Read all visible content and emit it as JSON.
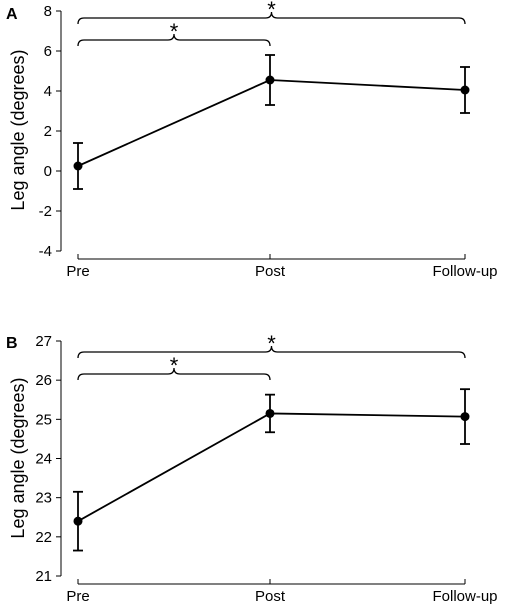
{
  "chart_data": [
    {
      "panel_label": "A",
      "type": "line",
      "categories": [
        "Pre",
        "Post",
        "Follow-up"
      ],
      "values": [
        0.25,
        4.55,
        4.05
      ],
      "error": [
        [
          -0.9,
          1.4
        ],
        [
          3.3,
          5.8
        ],
        [
          2.9,
          5.2
        ]
      ],
      "ylabel": "Leg angle (degrees)",
      "ylim": [
        -4,
        8
      ],
      "yticks": [
        -4,
        -2,
        0,
        2,
        4,
        6,
        8
      ],
      "ytick_labels": [
        "-4",
        "-2",
        "0",
        "2",
        "4",
        "6",
        "8"
      ],
      "significance": [
        {
          "from": "Pre",
          "to": "Post",
          "label": "*"
        },
        {
          "from": "Pre",
          "to": "Follow-up",
          "label": "*"
        }
      ],
      "grid": false
    },
    {
      "panel_label": "B",
      "type": "line",
      "categories": [
        "Pre",
        "Post",
        "Follow-up"
      ],
      "values": [
        22.4,
        25.15,
        25.07
      ],
      "error": [
        [
          21.65,
          23.15
        ],
        [
          24.67,
          25.63
        ],
        [
          24.37,
          25.77
        ]
      ],
      "ylabel": "Leg angle (degrees)",
      "ylim": [
        21,
        27
      ],
      "yticks": [
        21,
        22,
        23,
        24,
        25,
        26,
        27
      ],
      "ytick_labels": [
        "21",
        "22",
        "23",
        "24",
        "25",
        "26",
        "27"
      ],
      "significance": [
        {
          "from": "Pre",
          "to": "Post",
          "label": "*"
        },
        {
          "from": "Pre",
          "to": "Follow-up",
          "label": "*"
        }
      ],
      "grid": false
    }
  ]
}
